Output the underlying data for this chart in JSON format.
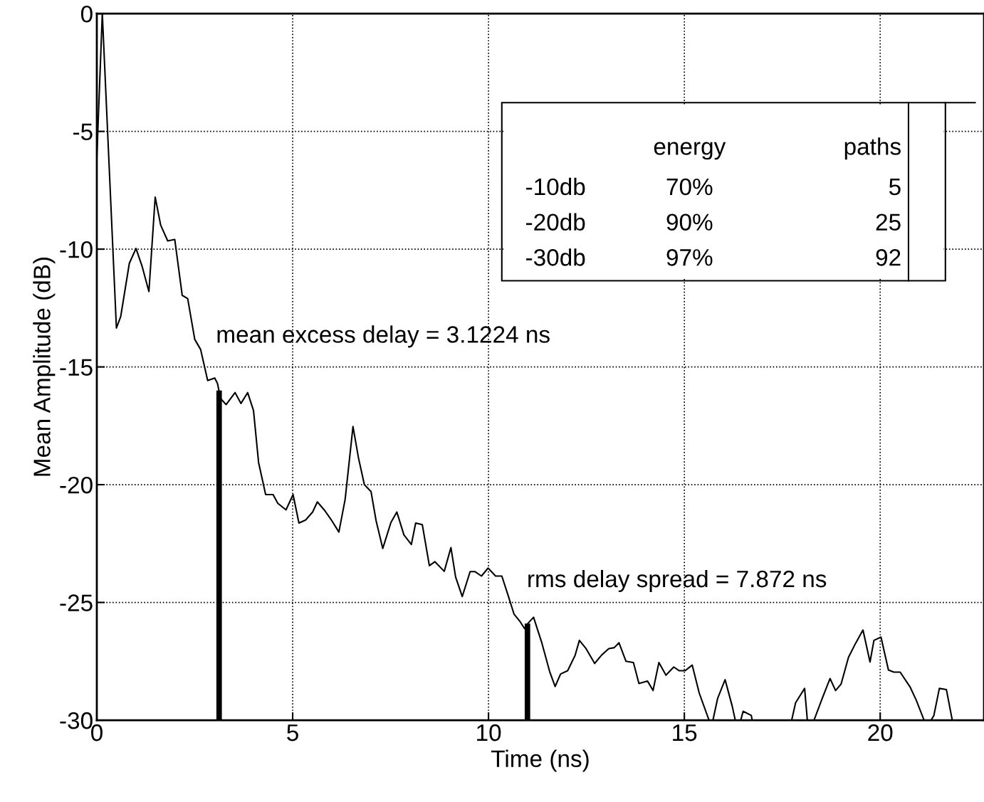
{
  "chart_data": {
    "type": "line",
    "xlabel": "Time (ns)",
    "ylabel": "Mean Amplitude (dB)",
    "xlim": [
      0,
      22.65
    ],
    "ylim": [
      -30,
      0
    ],
    "xticks": [
      0,
      5,
      10,
      15,
      20
    ],
    "yticks": [
      0,
      -5,
      -10,
      -15,
      -20,
      -25,
      -30
    ],
    "grid": true,
    "legend": false,
    "marker": "none",
    "line_style": "solid",
    "series": [
      {
        "color": "#000000",
        "x": [
          0,
          0.14,
          0.5,
          0.61,
          0.83,
          1.0,
          1.16,
          1.33,
          1.49,
          1.63,
          1.81,
          1.99,
          2.18,
          2.32,
          2.5,
          2.65,
          2.83,
          3.01,
          3.08,
          3.16,
          3.3,
          3.53,
          3.68,
          3.85,
          4.0,
          4.13,
          4.31,
          4.5,
          4.62,
          4.83,
          5.01,
          5.16,
          5.33,
          5.51,
          5.63,
          5.82,
          5.98,
          6.18,
          6.34,
          6.54,
          6.68,
          6.83,
          7.0,
          7.13,
          7.3,
          7.51,
          7.66,
          7.84,
          8.03,
          8.14,
          8.31,
          8.49,
          8.63,
          8.87,
          9.04,
          9.16,
          9.33,
          9.53,
          9.65,
          9.82,
          9.99,
          10.18,
          10.34,
          10.5,
          10.65,
          10.8,
          10.92,
          11.0,
          11.15,
          11.36,
          11.56,
          11.7,
          11.84,
          12.02,
          12.21,
          12.32,
          12.49,
          12.71,
          12.89,
          13.07,
          13.21,
          13.33,
          13.51,
          13.7,
          13.84,
          14.06,
          14.2,
          14.35,
          14.53,
          14.73,
          14.87,
          15.02,
          15.2,
          15.38,
          15.63,
          15.68,
          15.73,
          15.85,
          16.04,
          16.22,
          16.3,
          16.37,
          16.44,
          16.5,
          16.71,
          16.73,
          17.2,
          17.74,
          17.84,
          18.07,
          18.14,
          18.22,
          18.31,
          18.52,
          18.72,
          18.86,
          19.0,
          19.19,
          19.37,
          19.56,
          19.74,
          19.84,
          20.02,
          20.21,
          20.35,
          20.51,
          20.76,
          20.92,
          21.12,
          21.3,
          21.37,
          21.51,
          21.69,
          21.84
        ],
        "values": [
          -6.1,
          0,
          -13.35,
          -12.86,
          -10.6,
          -9.97,
          -10.75,
          -11.8,
          -7.79,
          -8.98,
          -9.65,
          -9.59,
          -11.96,
          -12.1,
          -13.83,
          -14.26,
          -15.58,
          -15.47,
          -15.7,
          -16.34,
          -16.6,
          -16.09,
          -16.55,
          -16.09,
          -16.85,
          -19.06,
          -20.42,
          -20.42,
          -20.79,
          -21.07,
          -20.42,
          -21.63,
          -21.5,
          -21.16,
          -20.73,
          -21.1,
          -21.48,
          -22.01,
          -20.62,
          -17.53,
          -18.86,
          -20.0,
          -20.29,
          -21.53,
          -22.71,
          -21.6,
          -21.16,
          -22.13,
          -22.54,
          -21.63,
          -21.7,
          -23.44,
          -23.27,
          -23.68,
          -22.67,
          -23.92,
          -24.75,
          -23.69,
          -23.69,
          -23.88,
          -23.54,
          -23.88,
          -23.88,
          -24.7,
          -25.49,
          -25.8,
          -26.11,
          -25.9,
          -25.63,
          -26.71,
          -27.93,
          -28.57,
          -28.04,
          -27.9,
          -27.25,
          -26.61,
          -26.96,
          -27.59,
          -27.23,
          -26.96,
          -26.92,
          -26.71,
          -27.5,
          -27.55,
          -28.44,
          -28.34,
          -28.74,
          -27.55,
          -28.09,
          -27.74,
          -27.9,
          -27.9,
          -27.66,
          -28.85,
          -30,
          null,
          -30,
          -29.07,
          -28.28,
          -29.39,
          -30,
          null,
          -30,
          -29.62,
          -29.8,
          -30,
          null,
          -30,
          -29.26,
          -28.65,
          -30,
          null,
          -30,
          -29.07,
          -28.23,
          -28.74,
          -28.47,
          -27.33,
          -26.74,
          -26.17,
          -27.53,
          -26.61,
          -26.47,
          -27.87,
          -27.96,
          -27.96,
          -28.58,
          -29.15,
          -30,
          -30,
          -29.8,
          -28.65,
          -28.7,
          -30
        ]
      },
      {
        "type": "bar",
        "color": "#000000",
        "x": [
          3.1224,
          10.9944
        ],
        "base": [
          -30,
          -30
        ],
        "values": [
          14.0,
          4.1
        ]
      }
    ],
    "annotations": [
      "energy",
      "paths",
      "-10db",
      "70%",
      "5",
      "-20db",
      "90%",
      "25",
      "-30db",
      "97%",
      "92",
      "mean excess delay = 3.1224 ns",
      "rms delay spread = 7.872 ns"
    ]
  }
}
